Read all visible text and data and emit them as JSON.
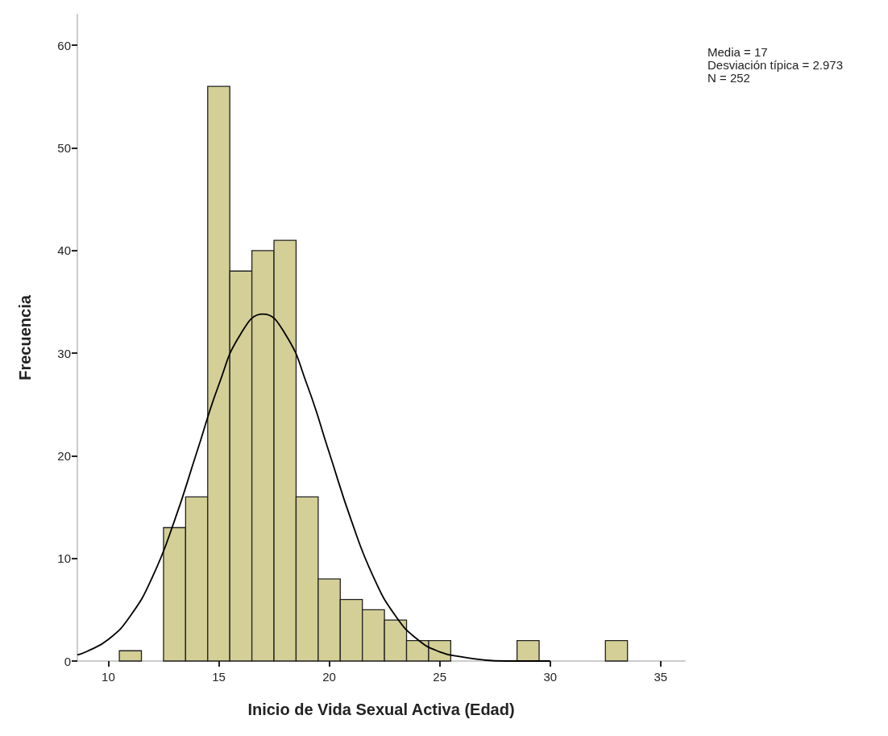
{
  "chart_data": {
    "type": "histogram",
    "xlabel": "Inicio de Vida Sexual Activa (Edad)",
    "ylabel": "Frecuencia",
    "bins": [
      10.5,
      11.5,
      12.5,
      13.5,
      14.5,
      15.5,
      16.5,
      17.5,
      18.5,
      19.5,
      20.5,
      21.5,
      22.5,
      23.5,
      24.5,
      25.5,
      26.5,
      27.5,
      28.5,
      29.5,
      30.5,
      31.5,
      32.5,
      33.5
    ],
    "values": [
      1,
      0,
      13,
      16,
      56,
      38,
      40,
      41,
      16,
      8,
      6,
      5,
      4,
      2,
      2,
      0,
      0,
      0,
      2,
      0,
      0,
      0,
      2
    ],
    "color": "#d3cf96",
    "series": [
      {
        "type": "line",
        "color": "#000000",
        "x": [
          8.6,
          9,
          10,
          11,
          12,
          13,
          14,
          15,
          16,
          17,
          18,
          19,
          20,
          21,
          22,
          23,
          24,
          25,
          26,
          27,
          28,
          30
        ],
        "values": [
          0.6,
          0.9,
          2.1,
          4.4,
          8.2,
          13.7,
          20.3,
          26.9,
          31.9,
          33.8,
          31.9,
          26.9,
          20.3,
          13.7,
          8.2,
          4.4,
          2.1,
          0.9,
          0.4,
          0.1,
          0,
          0
        ]
      }
    ],
    "xlim": [
      8.6,
      36.1
    ],
    "xticks": [
      10,
      15,
      20,
      25,
      30,
      35
    ],
    "ylim": [
      0,
      63
    ],
    "yticks": [
      0,
      10,
      20,
      30,
      40,
      50,
      60
    ],
    "grid": false,
    "marker": "none",
    "line_style": "solid",
    "annotations": [
      "Media = 17",
      "Desviación típica = 2.973",
      "N = 252"
    ]
  }
}
